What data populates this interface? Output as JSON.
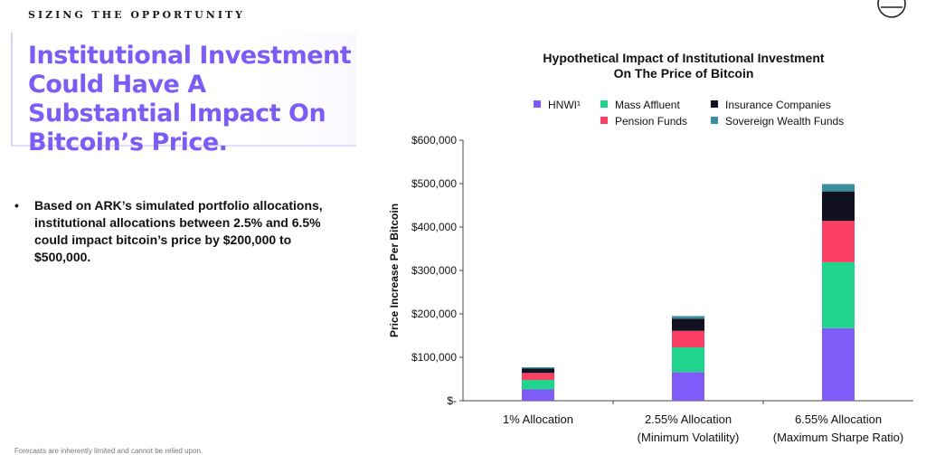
{
  "header": {
    "eyebrow": "SIZING THE OPPORTUNITY",
    "title": "Institutional Investment Could Have A Substantial Impact On Bitcoin’s Price."
  },
  "bullets": [
    "Based on ARK’s simulated portfolio allocations, institutional allocations between 2.5% and 6.5% could impact bitcoin’s price by $200,000 to $500,000."
  ],
  "footnote": "Forecasts are inherently limited and cannot be relied upon.",
  "icons": {
    "corner": "logo-circle-icon",
    "bullet": "•"
  },
  "chart_data": {
    "type": "bar",
    "stacked": true,
    "title_lines": [
      "Hypothetical Impact of Institutional Investment",
      "On The Price of Bitcoin"
    ],
    "xlabel": "",
    "ylabel": "Price Increase Per Bitcoin",
    "ylim": [
      0,
      600000
    ],
    "yticks": [
      0,
      100000,
      200000,
      300000,
      400000,
      500000,
      600000
    ],
    "ytick_labels": [
      "$-",
      "$100,000",
      "$200,000",
      "$300,000",
      "$400,000",
      "$500,000",
      "$600,000"
    ],
    "categories": [
      [
        "1% Allocation"
      ],
      [
        "2.55% Allocation",
        "(Minimum Volatility)"
      ],
      [
        "6.55% Allocation",
        "(Maximum Sharpe Ratio)"
      ]
    ],
    "series": [
      {
        "name": "HNWI¹",
        "color": "#7f5cf7",
        "values": [
          26000,
          66000,
          167000
        ]
      },
      {
        "name": "Mass Affluent",
        "color": "#20d48e",
        "values": [
          22000,
          57000,
          152000
        ]
      },
      {
        "name": "Pension Funds",
        "color": "#fb3e63",
        "values": [
          16000,
          38000,
          95000
        ]
      },
      {
        "name": "Insurance Companies",
        "color": "#11111f",
        "values": [
          10000,
          28000,
          68000
        ]
      },
      {
        "name": "Sovereign Wealth Funds",
        "color": "#3a8d9d",
        "values": [
          3000,
          6000,
          17000
        ]
      }
    ],
    "legend_position": "top",
    "grid": false
  }
}
